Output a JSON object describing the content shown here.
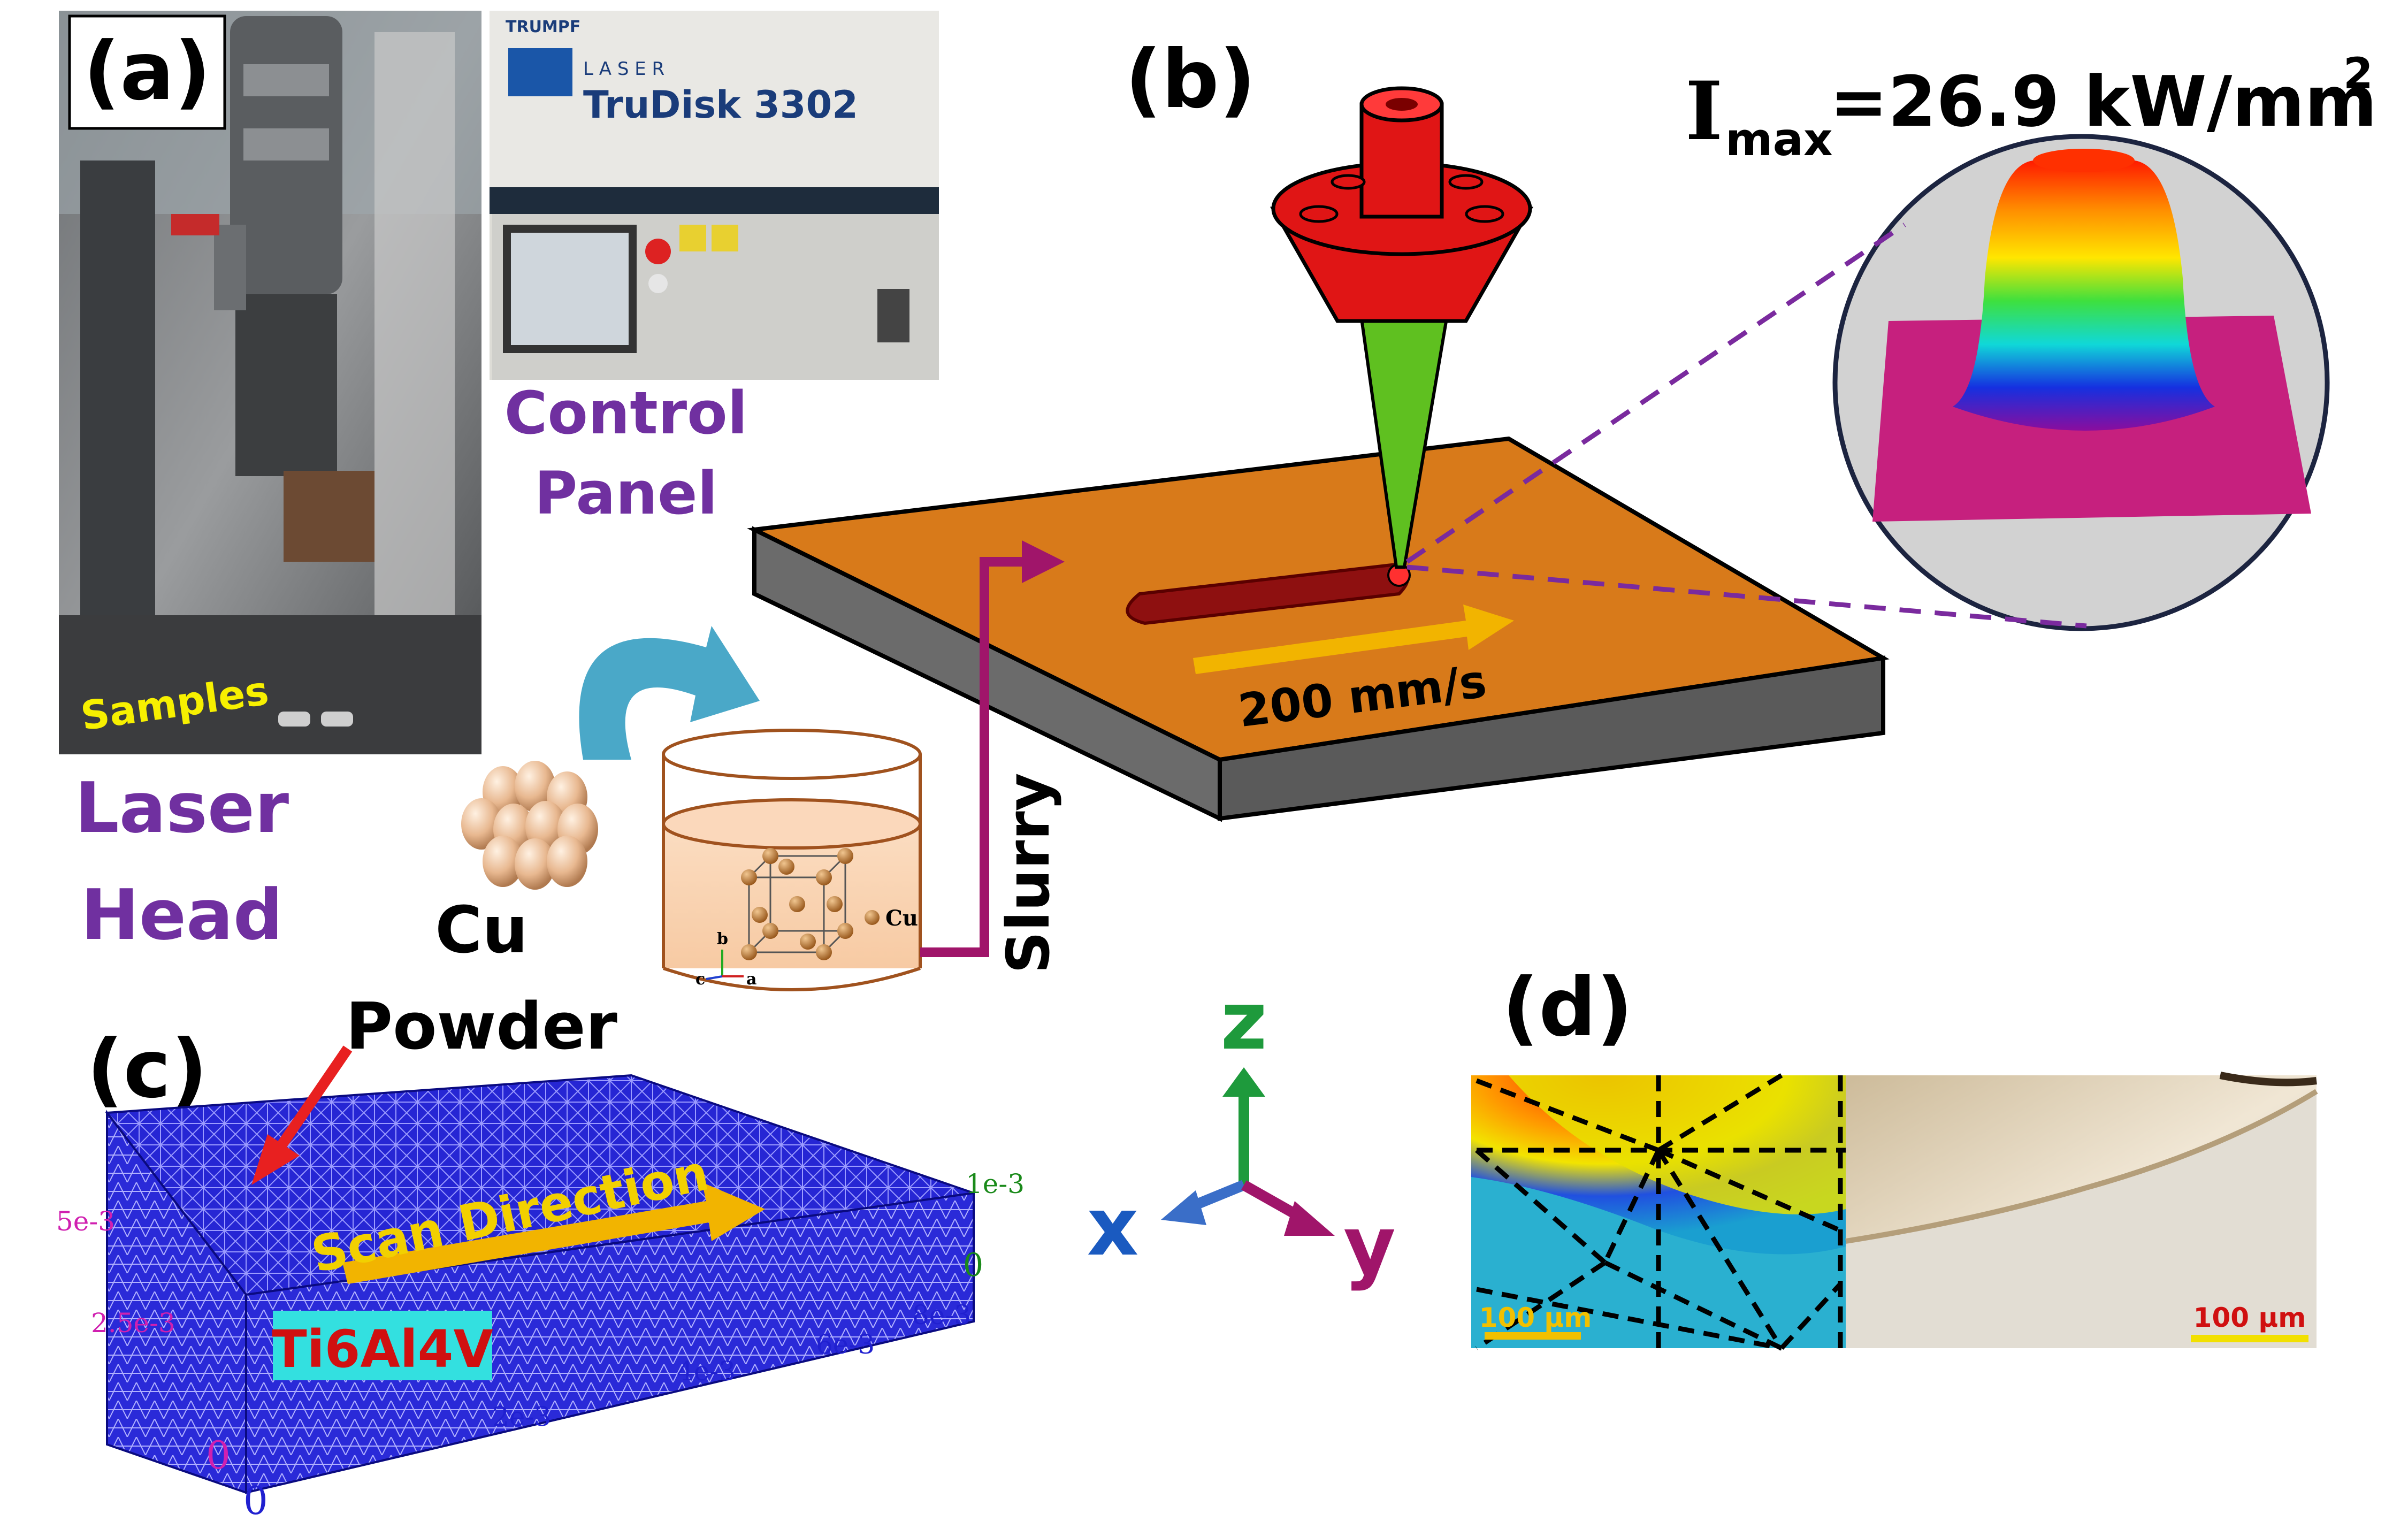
{
  "panel_a": {
    "label": "(a)",
    "brand": "TRUMPF",
    "laser_word": "L A S E R",
    "model": "TruDisk 3302",
    "samples_label": "Samples",
    "laser_head_line1": "Laser",
    "laser_head_line2": "Head",
    "control_panel_line1": "Control",
    "control_panel_line2": "Panel"
  },
  "panel_b": {
    "label": "(b)",
    "imax_label": "I",
    "imax_sub": "max",
    "imax_value": "=26.9 kW/mm",
    "imax_sup": "2",
    "speed_label": "200 mm/s",
    "slurry_label": "Slurry",
    "cu_label": "Cu",
    "powder_line1": "Cu",
    "powder_line2": "Powder",
    "lattice_axes": {
      "b": "b",
      "c": "c",
      "a": "a"
    }
  },
  "panel_c": {
    "label": "(c)",
    "scan_direction": "Scan Direction",
    "material": "Ti6Al4V",
    "z_ticks": [
      "5e-3",
      "2.5e-3",
      "0"
    ],
    "x_ticks": [
      "0",
      "2e-3",
      "4e-3",
      "6e-3",
      "8e-3"
    ],
    "y_ticks": [
      "1e-3",
      "0"
    ]
  },
  "axes_triad": {
    "z": "z",
    "x": "x",
    "y": "y"
  },
  "panel_d": {
    "label": "(d)",
    "scale_left": "100 µm",
    "scale_right": "100 µm"
  },
  "colors": {
    "label_purple": "#7030a0",
    "substrate_orange": "#d87a1a",
    "nozzle_red": "#e01515",
    "beam_green": "#5fc020",
    "arrow_gold": "#f2b400",
    "mesh_blue": "#2a2ad8",
    "slurry_magenta": "#a0156a",
    "material_badge": "#33e0e0",
    "material_text": "#d01010"
  }
}
